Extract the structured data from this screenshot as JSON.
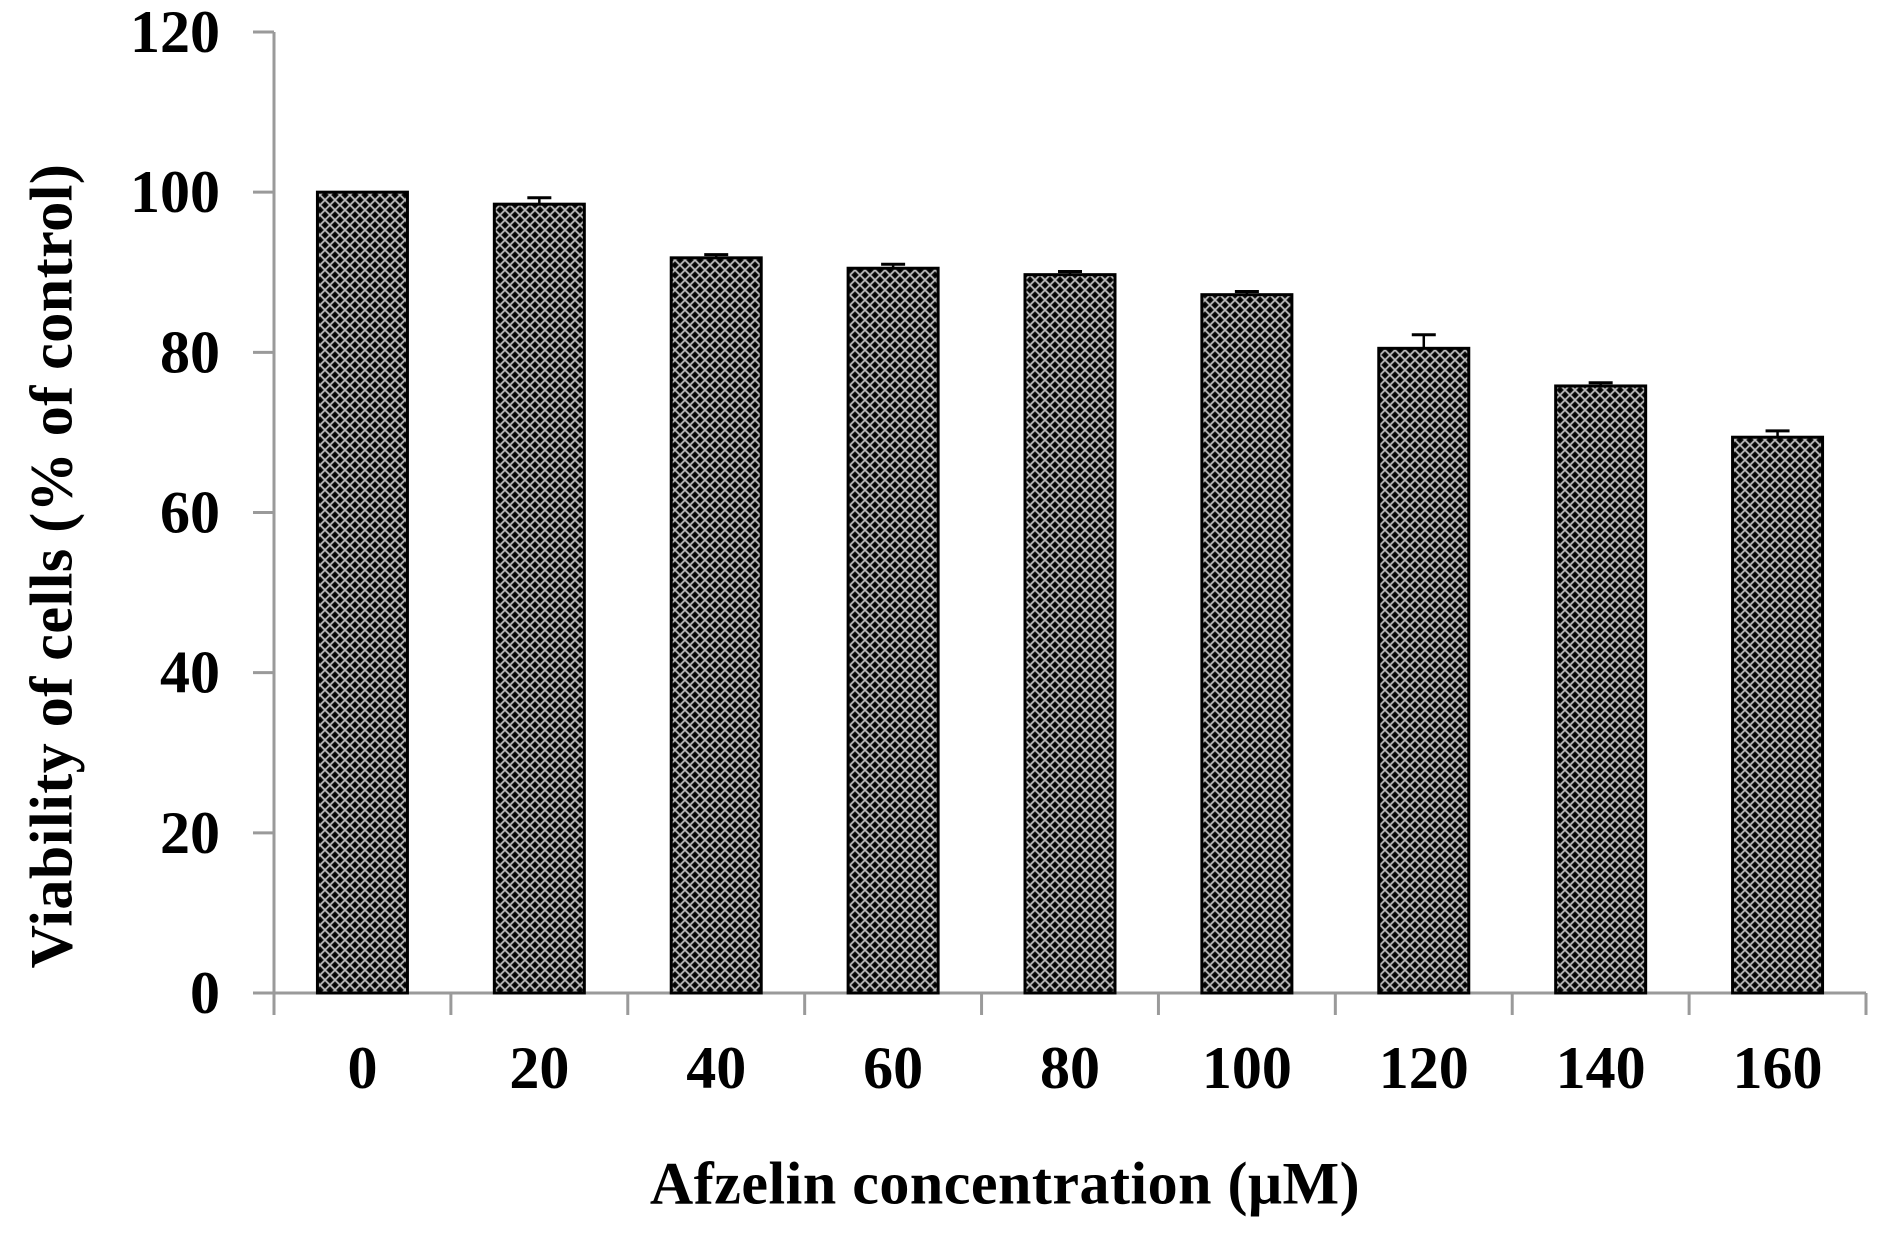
{
  "chart_data": {
    "type": "bar",
    "title": "",
    "xlabel": "Afzelin concentration (μM)",
    "ylabel": "Viability of cells (% of control)",
    "categories": [
      "0",
      "20",
      "40",
      "60",
      "80",
      "100",
      "120",
      "140",
      "160"
    ],
    "values": [
      100,
      98.5,
      91.8,
      90.5,
      89.7,
      87.2,
      80.5,
      75.8,
      69.4
    ],
    "error_bars": [
      0,
      0.8,
      0.4,
      0.5,
      0.4,
      0.4,
      1.7,
      0.4,
      0.8
    ],
    "ylim": [
      0,
      120
    ],
    "yticks": [
      0,
      20,
      40,
      60,
      80,
      100,
      120
    ],
    "grid": false,
    "legend": null,
    "bar_fill": "crosshatch-pattern",
    "colors": {
      "bar_dark": "#000000",
      "bar_light": "#c8c8c8",
      "bar_border": "#000000",
      "axis": "#9a9a9a",
      "text": "#000000"
    }
  }
}
